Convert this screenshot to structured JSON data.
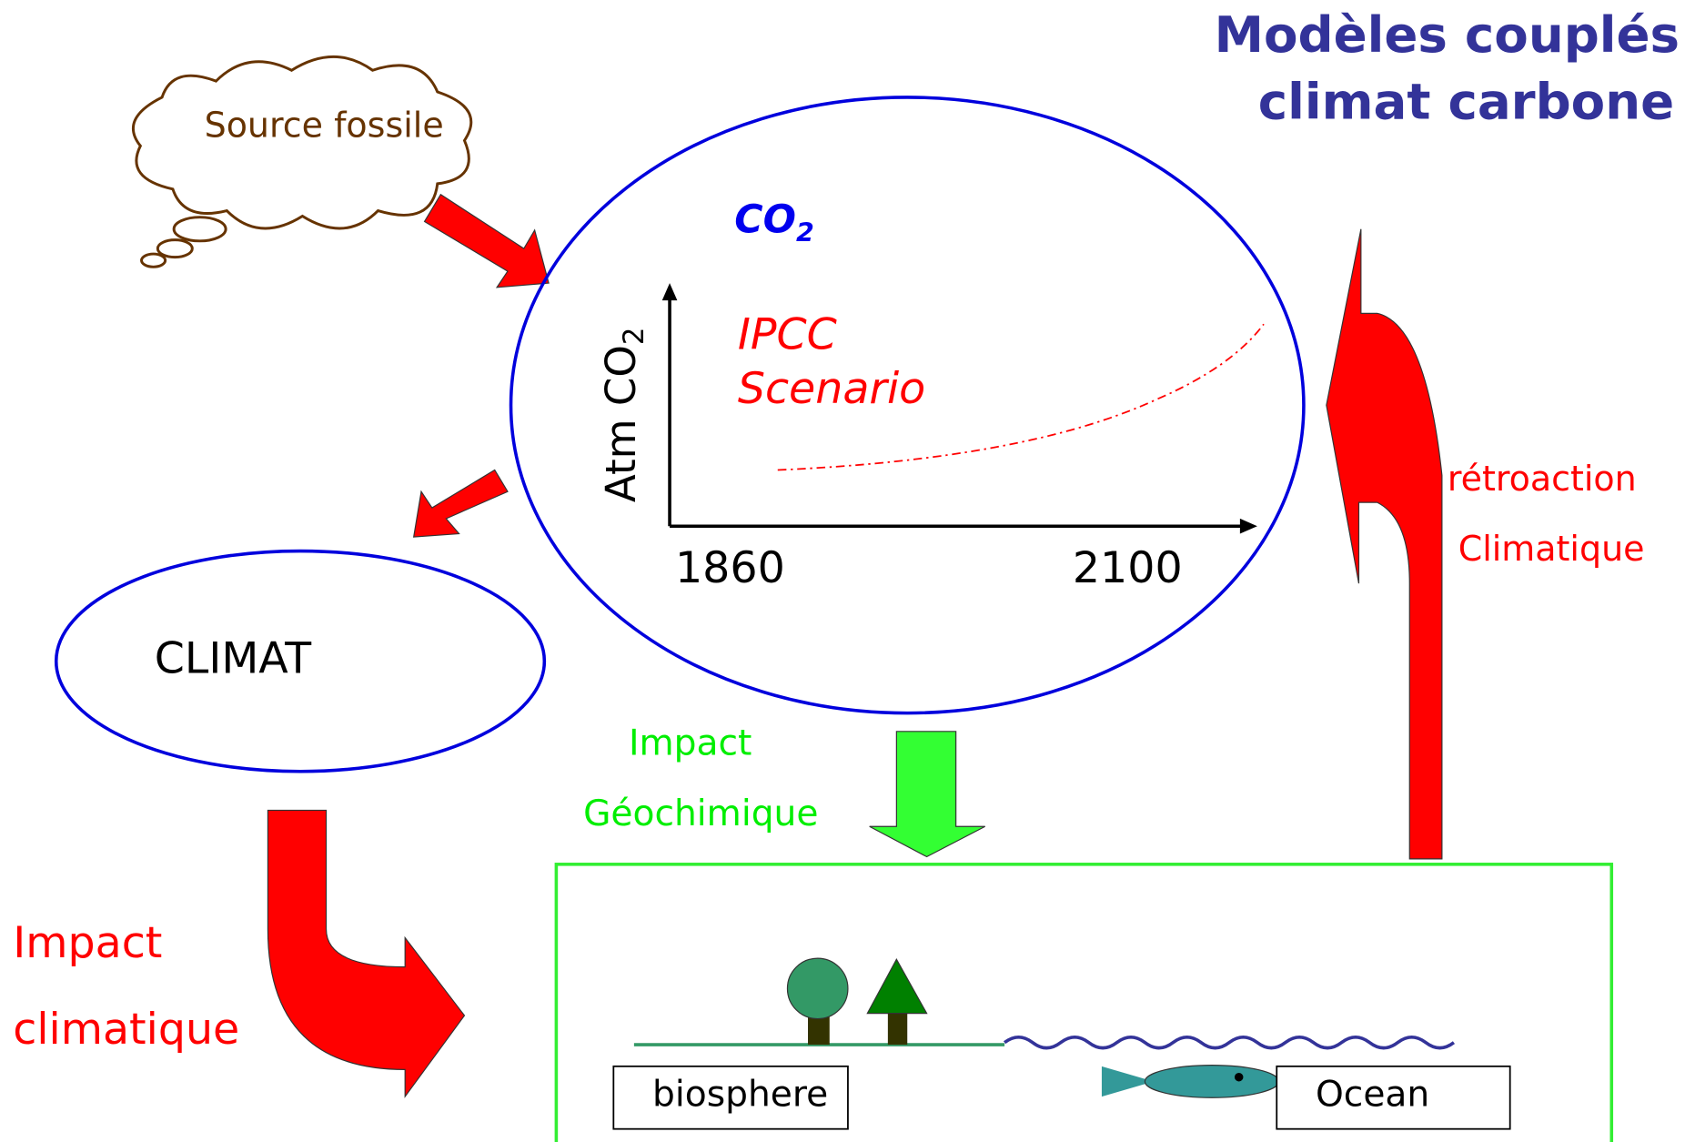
{
  "title": [
    "Modèles couplés",
    "climat carbone"
  ],
  "source": "Source fossile",
  "co2": {
    "label": "CO",
    "subscript": "2"
  },
  "axis": {
    "y_label": "Atm  CO",
    "y_subscript": "2",
    "x_start": "1860",
    "x_end": "2100"
  },
  "scenario": [
    "IPCC",
    "Scenario"
  ],
  "climat": "CLIMAT",
  "impact_geochimique": [
    "Impact",
    "Géochimique"
  ],
  "retroaction": [
    "rétroaction",
    "Climatique"
  ],
  "impact_climatique": [
    "Impact",
    "climatique"
  ],
  "biosphere": "biosphere",
  "ocean": "Ocean"
}
